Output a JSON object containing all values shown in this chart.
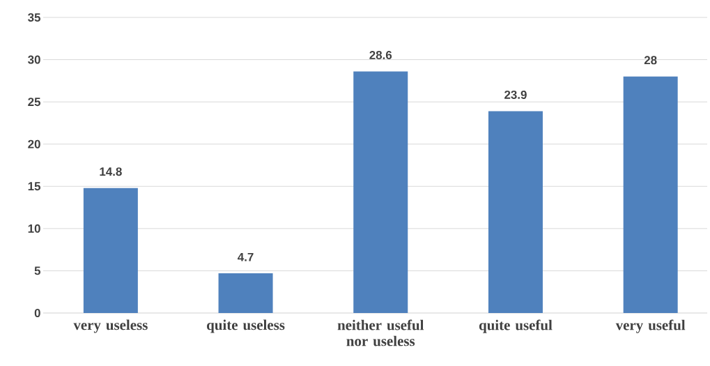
{
  "chart_data": {
    "type": "bar",
    "categories": [
      "very useless",
      "quite useless",
      "neither useful nor useless",
      "quite useful",
      "very useful"
    ],
    "values": [
      14.8,
      4.7,
      28.6,
      23.9,
      28
    ],
    "color": "#4f81bd",
    "ylim": [
      0,
      35
    ],
    "yticks": [
      0,
      5,
      10,
      15,
      20,
      25,
      30,
      35
    ],
    "grid": "y",
    "data_labels": true
  }
}
